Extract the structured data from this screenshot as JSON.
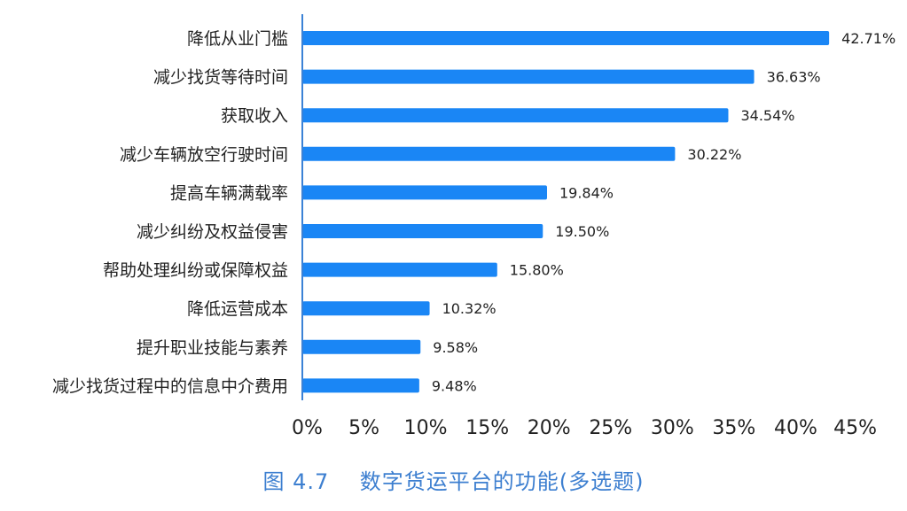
{
  "chart_data": {
    "type": "bar",
    "orientation": "horizontal",
    "categories": [
      "降低从业门槛",
      "减少找货等待时间",
      "获取收入",
      "减少车辆放空行驶时间",
      "提高车辆满载率",
      "减少纠纷及权益侵害",
      "帮助处理纠纷或保障权益",
      "降低运营成本",
      "提升职业技能与素养",
      "减少找货过程中的信息中介费用"
    ],
    "values": [
      42.71,
      36.63,
      34.54,
      30.22,
      19.84,
      19.5,
      15.8,
      10.32,
      9.58,
      9.48
    ],
    "value_labels": [
      "42.71%",
      "36.63%",
      "34.54%",
      "30.22%",
      "19.84%",
      "19.50%",
      "15.80%",
      "10.32%",
      "9.58%",
      "9.48%"
    ],
    "xticks": [
      "0%",
      "5%",
      "10%",
      "15%",
      "20%",
      "25%",
      "30%",
      "35%",
      "40%",
      "45%"
    ],
    "xlim": [
      0,
      45
    ],
    "grid": false,
    "bar_color": "#1a86f5",
    "title": "",
    "xlabel": "",
    "ylabel": ""
  },
  "caption": {
    "figure_number": "图 4.7",
    "text": "数字货运平台的功能(多选题)",
    "color": "#3d7fd0"
  }
}
